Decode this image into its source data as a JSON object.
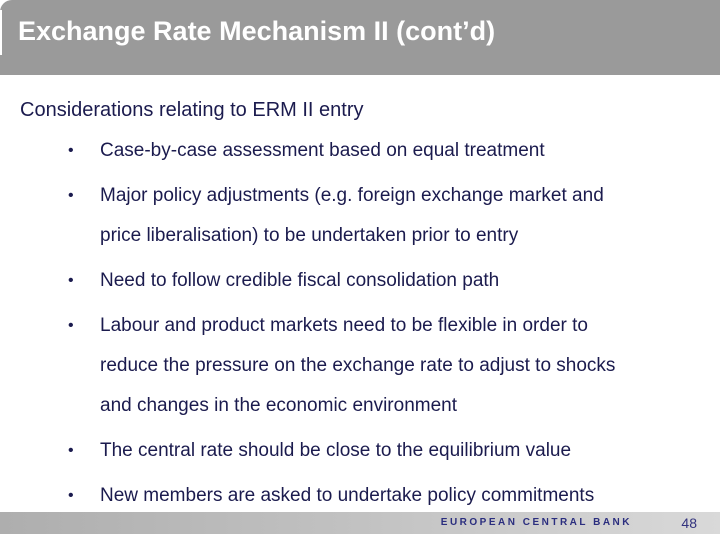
{
  "slide": {
    "title": "Exchange Rate Mechanism II (cont’d)",
    "subheading": "Considerations relating to ERM II entry",
    "bullet_marker": "•",
    "bullets": [
      {
        "lines": [
          "Case-by-case assessment based on equal treatment"
        ]
      },
      {
        "lines": [
          "Major policy adjustments (e.g. foreign exchange market and",
          "price liberalisation) to be undertaken prior to entry"
        ]
      },
      {
        "lines": [
          "Need to follow credible fiscal consolidation path"
        ]
      },
      {
        "lines": [
          "Labour and product markets need to be flexible in order to",
          "reduce the pressure on the exchange rate to adjust to shocks",
          "and changes in the economic environment"
        ]
      },
      {
        "lines": [
          "The central rate should be close to the equilibrium value"
        ]
      },
      {
        "lines": [
          "New members are asked to undertake policy commitments"
        ]
      }
    ]
  },
  "footer": {
    "brand": "EUROPEAN CENTRAL BANK",
    "page_number": "48"
  },
  "colors": {
    "header_bg": "#9a9a9a",
    "title_text": "#ffffff",
    "body_text": "#1b1b4e",
    "footer_bar_left": "#aeaeae",
    "footer_bar_right": "#d9d9d9",
    "footer_brand_text": "#2b2e7f"
  }
}
